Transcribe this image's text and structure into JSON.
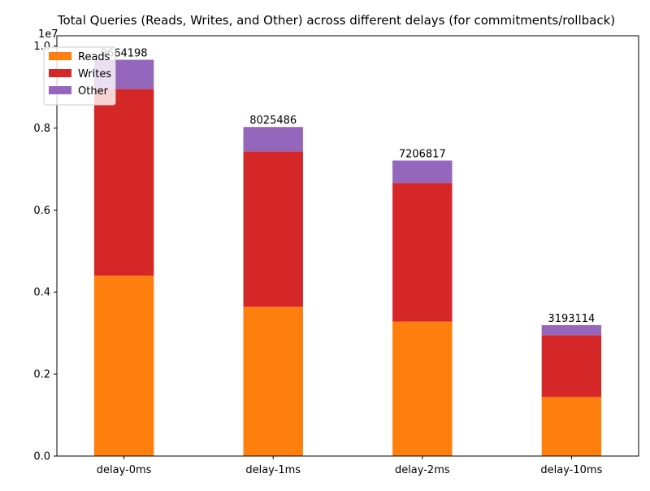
{
  "chart_data": {
    "type": "bar",
    "stacked": true,
    "title": "Total Queries (Reads, Writes, and Other) across different delays (for commitments/rollback)",
    "xlabel": "",
    "ylabel": "",
    "offset_label": "1e7",
    "categories": [
      "delay-0ms",
      "delay-1ms",
      "delay-2ms",
      "delay-10ms"
    ],
    "series": [
      {
        "name": "Reads",
        "color": "#ff7f0e",
        "values": [
          4400000,
          3640000,
          3280000,
          1440000
        ]
      },
      {
        "name": "Writes",
        "color": "#d62728",
        "values": [
          4550000,
          3790000,
          3380000,
          1510000
        ]
      },
      {
        "name": "Other",
        "color": "#9467bd",
        "values": [
          714198,
          595486,
          546817,
          243114
        ]
      }
    ],
    "totals": [
      9664198,
      8025486,
      7206817,
      3193114
    ],
    "total_labels": [
      "9664198",
      "8025486",
      "7206817",
      "3193114"
    ],
    "ylim": [
      0,
      10250000
    ],
    "yticks": [
      {
        "value": 0,
        "label": "0.0"
      },
      {
        "value": 2000000,
        "label": "0.2"
      },
      {
        "value": 4000000,
        "label": "0.4"
      },
      {
        "value": 6000000,
        "label": "0.6"
      },
      {
        "value": 8000000,
        "label": "0.8"
      },
      {
        "value": 10000000,
        "label": "1.0"
      }
    ],
    "grid": false,
    "legend_position": "top-left"
  }
}
